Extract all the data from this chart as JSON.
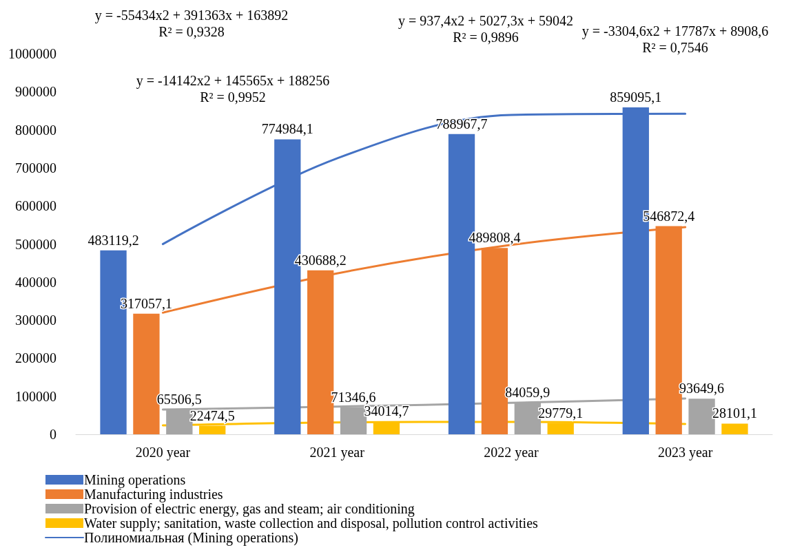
{
  "chart_data": {
    "type": "bar",
    "categories": [
      "2020 year",
      "2021 year",
      "2022 year",
      "2023 year"
    ],
    "series": [
      {
        "name": "Mining operations",
        "color": "#4472c4",
        "values": [
          483119.2,
          774984.1,
          788967.7,
          859095.1
        ],
        "value_labels": [
          "483119,2",
          "774984,1",
          "788967,7",
          "859095,1"
        ]
      },
      {
        "name": "Manufacturing industries",
        "color": "#ed7d31",
        "values": [
          317057.1,
          430688.2,
          489808.4,
          546872.4
        ],
        "value_labels": [
          "317057,1",
          "430688,2",
          "489808,4",
          "546872,4"
        ]
      },
      {
        "name": "Provision of electric energy, gas and steam; air conditioning",
        "color": "#a5a5a5",
        "values": [
          65506.5,
          71346.6,
          84059.9,
          93649.6
        ],
        "value_labels": [
          "65506,5",
          "71346,6",
          "84059,9",
          "93649,6"
        ]
      },
      {
        "name": "Water supply; sanitation, waste collection and disposal, pollution control activities",
        "color": "#ffc000",
        "values": [
          22474.5,
          34014.7,
          29779.1,
          28101.1
        ],
        "value_labels": [
          "22474,5",
          "34014,7",
          "29779,1",
          "28101,1"
        ]
      },
      {
        "name": "Полиномиальная (Mining operations)",
        "type": "line",
        "color": "#4472c4",
        "values": [
          499821,
          724882,
          839075,
          842400
        ]
      },
      {
        "type": "line",
        "color": "#ed7d31",
        "values": [
          319679,
          422818,
          497673,
          544244
        ]
      },
      {
        "type": "line",
        "color": "#a5a5a5",
        "values": [
          65006.7,
          72846.2,
          82560.5,
          94149.6
        ]
      },
      {
        "type": "line",
        "color": "#ffc000",
        "values": [
          23391,
          31264.2,
          32528.2,
          27183
        ]
      }
    ],
    "ylim": [
      0,
      1000000
    ],
    "yticks": [
      0,
      100000,
      200000,
      300000,
      400000,
      500000,
      600000,
      700000,
      800000,
      900000,
      1000000
    ],
    "grid": false,
    "legend": "bottom",
    "marker": "none",
    "line_style": "solid",
    "annotations": [
      "y = -55434x2 + 391363x + 163892\nR² = 0,9328",
      "y = -14142x2 + 145565x + 188256\nR² = 0,9952",
      "y = 937,4x2 + 5027,3x + 59042\nR² = 0,9896",
      "y = -3304,6x2 + 17787x + 8908,6\nR² = 0,7546"
    ]
  }
}
